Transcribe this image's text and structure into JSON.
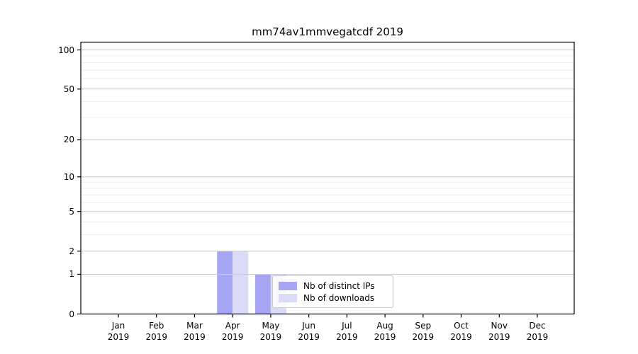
{
  "title": "mm74av1mmvegatcdf 2019",
  "legend": {
    "entries": [
      {
        "label": "Nb of distinct IPs",
        "color": "#a6a6f5"
      },
      {
        "label": "Nb of downloads",
        "color": "#dbdbf8"
      }
    ]
  },
  "chart_data": {
    "type": "bar",
    "title": "mm74av1mmvegatcdf 2019",
    "categories": [
      "Jan",
      "Feb",
      "Mar",
      "Apr",
      "May",
      "Jun",
      "Jul",
      "Aug",
      "Sep",
      "Oct",
      "Nov",
      "Dec"
    ],
    "category_year": "2019",
    "series": [
      {
        "name": "Nb of distinct IPs",
        "color": "#a6a6f5",
        "values": [
          0,
          0,
          0,
          2,
          1,
          0,
          0,
          0,
          0,
          0,
          0,
          0
        ]
      },
      {
        "name": "Nb of downloads",
        "color": "#dbdbf8",
        "values": [
          0,
          0,
          0,
          2,
          1,
          0,
          0,
          0,
          0,
          0,
          0,
          0
        ]
      }
    ],
    "xlabel": "",
    "ylabel": "",
    "yscale": "log1p",
    "ylim": [
      0,
      113
    ],
    "y_tick_values": [
      0,
      1,
      2,
      5,
      10,
      20,
      50,
      100
    ],
    "y_minor_gridline_values": [
      3,
      4,
      6,
      7,
      8,
      9,
      30,
      40,
      60,
      70,
      80,
      90
    ],
    "grid": "horizontal",
    "legend_position": "inside lower center-right",
    "colors": {
      "spine": "#000000",
      "major_grid": "#cccccc",
      "minor_grid": "#ededed",
      "background": "#ffffff"
    }
  }
}
